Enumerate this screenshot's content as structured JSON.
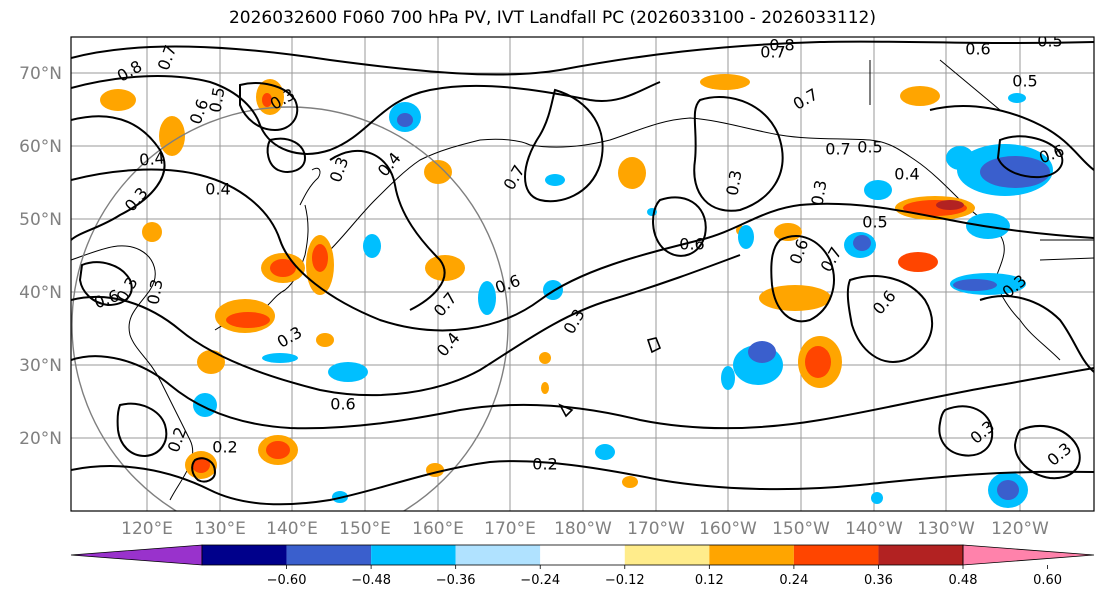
{
  "title": "2026032600 F060 700 hPa PV, IVT Landfall PC (2026033100 - 2026033112)",
  "map": {
    "lat_labels": [
      "70°N",
      "60°N",
      "50°N",
      "40°N",
      "30°N",
      "20°N"
    ],
    "lon_labels": [
      "120°E",
      "130°E",
      "140°E",
      "150°E",
      "160°E",
      "170°E",
      "180°W",
      "170°W",
      "160°W",
      "150°W",
      "140°W",
      "130°W",
      "120°W"
    ],
    "contour_labels": [
      "0.8",
      "0.7",
      "0.5",
      "0.6",
      "0.3",
      "0.4",
      "0.4",
      "0.3",
      "0.4",
      "0.3",
      "0.6",
      "0.3",
      "0.3",
      "0.7",
      "0.6",
      "0.4",
      "0.6",
      "0.3",
      "0.3",
      "0.2",
      "0.2",
      "0.7",
      "0.8",
      "0.7",
      "0.7",
      "0.6",
      "0.5",
      "0.6",
      "0.6",
      "0.3",
      "0.5",
      "0.4",
      "0.5",
      "0.7",
      "0.3",
      "0.6",
      "0.6",
      "0.7",
      "0.5",
      "0.3",
      "0.3",
      "0.3",
      "0.2"
    ]
  },
  "colorbar": {
    "ticks": [
      "−0.60",
      "−0.48",
      "−0.36",
      "−0.24",
      "−0.12",
      "0.12",
      "0.24",
      "0.36",
      "0.48",
      "0.60"
    ],
    "colors": [
      "#9932cc",
      "#00008b",
      "#3a5fcd",
      "#00bfff",
      "#b0e2ff",
      "#ffffff",
      "#ffec8b",
      "#ffa500",
      "#ff4500",
      "#b22222",
      "#ff82ab"
    ]
  }
}
